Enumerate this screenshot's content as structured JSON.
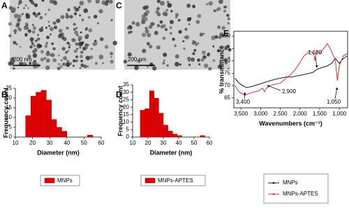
{
  "images": [
    {
      "panel": "A",
      "scale_bar": "200 nm"
    },
    {
      "panel": "C",
      "scale_bar": "200 nm"
    }
  ],
  "chart_data": [
    {
      "type": "histogram",
      "panel": "B",
      "x_label": "Diameter (nm)",
      "y_label": "Frequency count",
      "bins": [
        16,
        19,
        22,
        25,
        28,
        31,
        34,
        37,
        40,
        43,
        46,
        49,
        52,
        55
      ],
      "series": [
        {
          "name": "MNPs",
          "color": "#e00000",
          "values": [
            11,
            21,
            23,
            24,
            19,
            9,
            5,
            3,
            0,
            0,
            0,
            0,
            1
          ]
        }
      ],
      "xlim": [
        10,
        60
      ],
      "xticks": [
        10,
        20,
        30,
        40,
        50,
        60
      ],
      "ylim": [
        0,
        25
      ],
      "yticks": [
        0,
        5,
        10,
        15,
        20,
        25
      ]
    },
    {
      "type": "histogram",
      "panel": "D",
      "x_label": "Diameter (nm)",
      "y_label": "Frequency count",
      "bins": [
        15,
        18,
        21,
        24,
        27,
        30,
        33,
        36,
        39,
        42,
        45,
        48,
        51,
        54,
        57
      ],
      "series": [
        {
          "name": "MNPs-APTES",
          "color": "#e00000",
          "values": [
            18,
            19,
            31,
            26,
            16,
            8,
            4,
            2,
            1,
            0,
            0,
            0,
            0,
            1
          ]
        }
      ],
      "xlim": [
        10,
        60
      ],
      "xticks": [
        10,
        20,
        30,
        40,
        50,
        60
      ],
      "ylim": [
        0,
        35
      ],
      "yticks": [
        0,
        5,
        10,
        15,
        20,
        25,
        30,
        35
      ]
    },
    {
      "type": "line",
      "panel": "E",
      "x_label": "Wavenumbers (cm⁻¹)",
      "y_label": "% transmittance",
      "x": [
        3650,
        3550,
        3450,
        3400,
        3350,
        3250,
        3150,
        3050,
        2950,
        2900,
        2850,
        2750,
        2650,
        2500,
        2350,
        2200,
        2050,
        1900,
        1750,
        1650,
        1620,
        1580,
        1500,
        1400,
        1300,
        1200,
        1100,
        1050,
        1000,
        900,
        800
      ],
      "series": [
        {
          "name": "MNPs",
          "color": "#000000",
          "values": [
            73,
            71,
            70,
            69.5,
            69.3,
            69.5,
            70,
            70.5,
            71,
            71.3,
            71.5,
            72,
            72.5,
            73,
            73.5,
            73.5,
            74,
            74.5,
            75,
            75.5,
            76,
            76.5,
            77,
            77.5,
            78,
            79,
            81,
            80,
            79,
            81,
            82
          ]
        },
        {
          "name": "MNPs-APTES",
          "color": "#d02020",
          "values": [
            70,
            67.5,
            66.5,
            66,
            66.5,
            67,
            67.5,
            67.8,
            69,
            67.5,
            69,
            70,
            70.5,
            71,
            73,
            75,
            78,
            82,
            84,
            83,
            80,
            84,
            83,
            85,
            87,
            84,
            80,
            72,
            78,
            82,
            83
          ]
        }
      ],
      "xlim": [
        3680,
        790
      ],
      "xticks": [
        {
          "value": 3500,
          "label": "3,500"
        },
        {
          "value": 3000,
          "label": "3,000"
        },
        {
          "value": 2500,
          "label": "2,500"
        },
        {
          "value": 2000,
          "label": "2,000"
        },
        {
          "value": 1500,
          "label": "1,500"
        },
        {
          "value": 1000,
          "label": "1,000"
        }
      ],
      "ylim": [
        61,
        92
      ],
      "yticks": [
        65,
        70,
        75,
        80,
        85,
        90
      ],
      "annotations": [
        "1,620",
        "2,900",
        "3,400",
        "1,050"
      ]
    }
  ]
}
